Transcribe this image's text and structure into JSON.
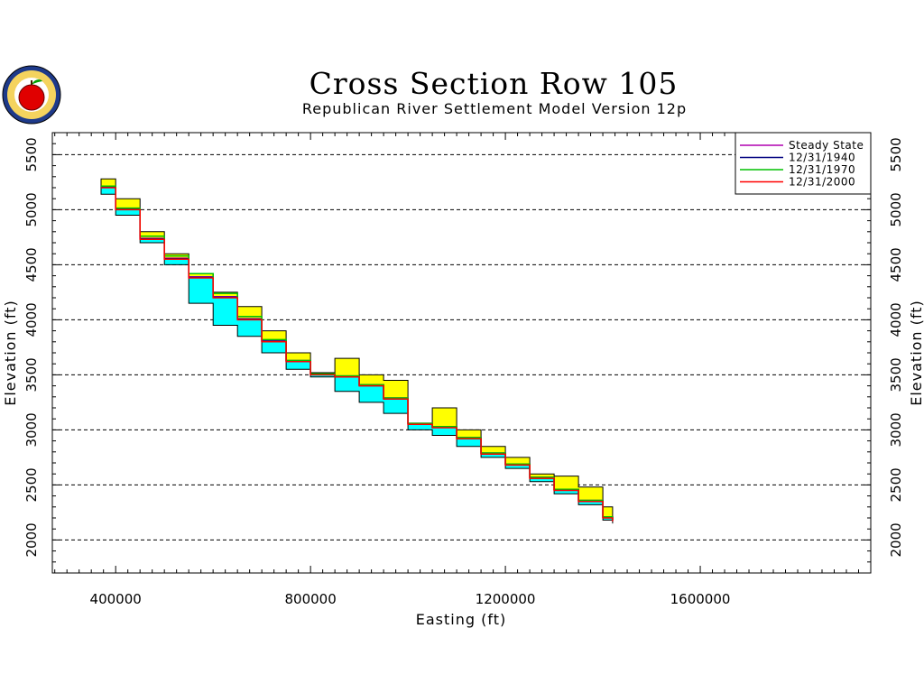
{
  "chart_data": {
    "type": "area",
    "title": "Cross Section Row 105",
    "subtitle": "Republican River Settlement Model Version 12p",
    "xlabel": "Easting (ft)",
    "ylabel": "Elevation (ft)",
    "xlim": [
      270000,
      1950000
    ],
    "ylim": [
      1700000,
      5700000
    ],
    "ylim_note": "",
    "x_ticks": [
      400000,
      800000,
      1200000,
      1600000
    ],
    "x_tick_labels": [
      "400000",
      "800000",
      "1200000",
      "1600000"
    ],
    "y_ticks": [
      2000,
      2500,
      3000,
      3500,
      4000,
      4500,
      5000,
      5500
    ],
    "y_tick_labels": [
      "2000",
      "2500",
      "3000",
      "3500",
      "4000",
      "4500",
      "5000",
      "5500"
    ],
    "y_range": [
      1700,
      5700
    ],
    "grid": "horizontal dashed",
    "legend_position": "top-right",
    "legend": [
      {
        "name": "Steady State",
        "color": "#b000b0"
      },
      {
        "name": "12/31/1940",
        "color": "#000080"
      },
      {
        "name": "12/31/1970",
        "color": "#00c000"
      },
      {
        "name": "12/31/2000",
        "color": "#ff0000"
      }
    ],
    "fill_colors": {
      "upper_layer": "#ffff00",
      "aquifer": "#00ffff",
      "outline": "#000000"
    },
    "easting": [
      370000,
      400000,
      450000,
      500000,
      550000,
      600000,
      650000,
      700000,
      750000,
      800000,
      850000,
      900000,
      950000,
      1000000,
      1050000,
      1100000,
      1150000,
      1200000,
      1250000,
      1300000,
      1350000,
      1400000,
      1420000
    ],
    "land_surface": [
      5280,
      5100,
      4800,
      4600,
      4420,
      4250,
      4120,
      3900,
      3700,
      3520,
      3650,
      3500,
      3450,
      3050,
      3200,
      3000,
      2850,
      2750,
      2600,
      2580,
      2480,
      2300,
      2250
    ],
    "water_table_2000": [
      5200,
      5000,
      4730,
      4550,
      4380,
      4200,
      4000,
      3800,
      3620,
      3500,
      3480,
      3400,
      3280,
      3050,
      3020,
      2920,
      2780,
      2680,
      2560,
      2450,
      2350,
      2200,
      2170
    ],
    "aquifer_base": [
      5140,
      4950,
      4700,
      4500,
      4150,
      3950,
      3850,
      3700,
      3550,
      3480,
      3350,
      3250,
      3150,
      3000,
      2950,
      2850,
      2750,
      2650,
      2530,
      2420,
      2320,
      2180,
      2150
    ],
    "series": [
      {
        "name": "Steady State",
        "values": [
          5210,
          5010,
          4740,
          4560,
          4390,
          4210,
          4010,
          3810,
          3630,
          3510,
          3490,
          3410,
          3290,
          3060,
          3030,
          2930,
          2790,
          2690,
          2570,
          2460,
          2360,
          2210,
          2180
        ]
      },
      {
        "name": "12/31/1940",
        "values": [
          5205,
          5005,
          4735,
          4555,
          4385,
          4205,
          4005,
          3805,
          3625,
          3505,
          3485,
          3405,
          3285,
          3055,
          3025,
          2925,
          2785,
          2685,
          2565,
          2455,
          2355,
          2205,
          2175
        ]
      },
      {
        "name": "12/31/1970",
        "values": [
          5215,
          5015,
          4760,
          4580,
          4420,
          4240,
          4030,
          3820,
          3630,
          3510,
          3490,
          3410,
          3290,
          3060,
          3030,
          2930,
          2790,
          2690,
          2570,
          2460,
          2360,
          2210,
          2180
        ]
      },
      {
        "name": "12/31/2000",
        "values": [
          5200,
          5000,
          4730,
          4550,
          4380,
          4200,
          4000,
          3800,
          3620,
          3500,
          3480,
          3400,
          3280,
          3050,
          3020,
          2920,
          2780,
          2680,
          2560,
          2450,
          2350,
          2200,
          2170
        ]
      }
    ]
  }
}
